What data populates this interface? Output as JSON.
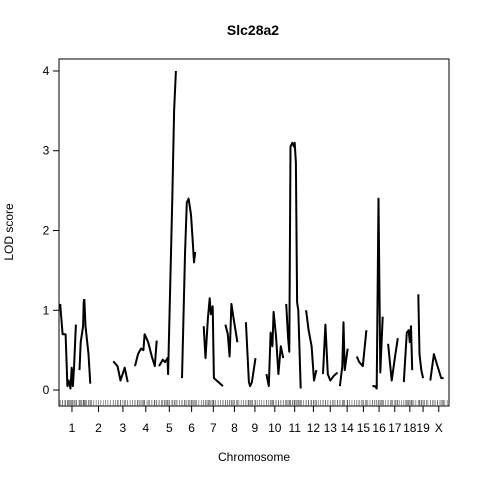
{
  "chart_data": {
    "type": "line",
    "title": "Slc28a2",
    "xlabel": "Chromosome",
    "ylabel": "LOD score",
    "ylim": [
      -0.2,
      4.15
    ],
    "xlim": [
      0,
      20.7
    ],
    "yticks": [
      0,
      1,
      2,
      3,
      4
    ],
    "chromosomes": [
      {
        "label": "1",
        "start": 0.1,
        "end": 2.05
      },
      {
        "label": "2",
        "start": 2.3,
        "end": 4.25
      },
      {
        "label": "3",
        "start": 4.5,
        "end": 6.1
      },
      {
        "label": "4",
        "start": 6.3,
        "end": 8.1
      },
      {
        "label": "5",
        "start": 8.3,
        "end": 10.0
      },
      {
        "label": "6",
        "start": 10.2,
        "end": 11.8
      },
      {
        "label": "7",
        "start": 12.0,
        "end": 13.6
      },
      {
        "label": "8",
        "start": 13.8,
        "end": 15.3
      },
      {
        "label": "9",
        "start": 15.5,
        "end": 17.0
      },
      {
        "label": "10",
        "start": 17.2,
        "end": 18.6
      },
      {
        "label": "11",
        "start": 18.8,
        "end": 20.3
      },
      {
        "label": "12",
        "start": 20.5,
        "end": 21.7
      },
      {
        "label": "13",
        "start": 21.9,
        "end": 23.1
      },
      {
        "label": "14",
        "start": 23.3,
        "end": 24.5
      },
      {
        "label": "15",
        "start": 24.7,
        "end": 25.8
      },
      {
        "label": "16",
        "start": 26.0,
        "end": 27.1
      },
      {
        "label": "17",
        "start": 27.3,
        "end": 28.4
      },
      {
        "label": "18",
        "start": 28.6,
        "end": 29.6
      },
      {
        "label": "19",
        "start": 29.8,
        "end": 30.6
      },
      {
        "label": "X",
        "start": 30.8,
        "end": 32.2
      }
    ],
    "series": [
      {
        "chromosome": "1",
        "points": [
          [
            0.1,
            1.08
          ],
          [
            0.3,
            0.7
          ],
          [
            0.55,
            0.7
          ],
          [
            0.7,
            0.05
          ],
          [
            0.8,
            0.12
          ],
          [
            0.95,
            0.02
          ],
          [
            1.05,
            0.28
          ],
          [
            1.15,
            0.05
          ],
          [
            1.25,
            0.3
          ],
          [
            1.4,
            0.82
          ]
        ]
      },
      {
        "chromosome": "1b",
        "points": [
          [
            1.7,
            0.25
          ],
          [
            1.8,
            0.6
          ],
          [
            2.0,
            0.8
          ],
          [
            2.05,
            1.1
          ],
          [
            2.1,
            1.14
          ]
        ]
      },
      {
        "chromosome": "2",
        "points": [
          [
            2.1,
            1.14
          ],
          [
            2.2,
            0.8
          ],
          [
            2.45,
            0.45
          ],
          [
            2.6,
            0.08
          ]
        ]
      },
      {
        "chromosome": "3",
        "points": [
          [
            4.5,
            0.36
          ],
          [
            4.85,
            0.3
          ],
          [
            5.1,
            0.12
          ],
          [
            5.45,
            0.28
          ],
          [
            5.7,
            0.1
          ]
        ]
      },
      {
        "chromosome": "4",
        "points": [
          [
            6.3,
            0.3
          ],
          [
            6.55,
            0.45
          ],
          [
            6.8,
            0.52
          ],
          [
            7.0,
            0.5
          ],
          [
            7.1,
            0.7
          ],
          [
            7.4,
            0.6
          ],
          [
            7.7,
            0.42
          ],
          [
            7.95,
            0.3
          ],
          [
            8.1,
            0.62
          ]
        ]
      },
      {
        "chromosome": "5",
        "points": [
          [
            8.3,
            0.3
          ],
          [
            8.6,
            0.38
          ],
          [
            8.8,
            0.35
          ],
          [
            9.0,
            0.4
          ],
          [
            9.05,
            0.2
          ],
          [
            9.4,
            2.4
          ],
          [
            9.55,
            3.5
          ],
          [
            9.7,
            4.0
          ]
        ]
      },
      {
        "chromosome": "6",
        "points": [
          [
            10.2,
            0.15
          ],
          [
            10.45,
            1.7
          ],
          [
            10.6,
            2.35
          ],
          [
            10.75,
            2.4
          ],
          [
            10.95,
            2.2
          ],
          [
            11.1,
            1.85
          ],
          [
            11.2,
            1.6
          ],
          [
            11.3,
            1.73
          ]
        ]
      },
      {
        "chromosome": "7",
        "points": [
          [
            12.0,
            0.8
          ],
          [
            12.15,
            0.4
          ],
          [
            12.35,
            0.9
          ],
          [
            12.5,
            1.15
          ],
          [
            12.6,
            0.95
          ],
          [
            12.75,
            1.05
          ],
          [
            12.85,
            0.15
          ],
          [
            13.6,
            0.05
          ]
        ]
      },
      {
        "chromosome": "8",
        "points": [
          [
            13.8,
            0.82
          ],
          [
            14.0,
            0.7
          ],
          [
            14.15,
            0.42
          ],
          [
            14.3,
            1.08
          ],
          [
            14.5,
            0.88
          ],
          [
            14.8,
            0.6
          ]
        ]
      },
      {
        "chromosome": "9",
        "points": [
          [
            15.5,
            0.85
          ],
          [
            15.75,
            0.1
          ],
          [
            15.85,
            0.05
          ],
          [
            16.0,
            0.1
          ],
          [
            16.3,
            0.4
          ]
        ]
      },
      {
        "chromosome": "10",
        "points": [
          [
            17.2,
            0.2
          ],
          [
            17.4,
            0.05
          ],
          [
            17.55,
            0.72
          ],
          [
            17.7,
            0.55
          ],
          [
            17.8,
            0.98
          ],
          [
            18.0,
            0.68
          ],
          [
            18.2,
            0.2
          ],
          [
            18.4,
            0.55
          ],
          [
            18.6,
            0.4
          ]
        ]
      },
      {
        "chromosome": "11",
        "points": [
          [
            18.85,
            1.08
          ],
          [
            19.0,
            0.65
          ],
          [
            19.1,
            0.48
          ],
          [
            19.2,
            3.05
          ],
          [
            19.35,
            3.1
          ],
          [
            19.5,
            3.05
          ],
          [
            19.55,
            3.1
          ],
          [
            19.65,
            2.85
          ],
          [
            19.75,
            1.1
          ],
          [
            19.85,
            1.0
          ],
          [
            20.05,
            0.02
          ]
        ]
      },
      {
        "chromosome": "12",
        "points": [
          [
            20.5,
            1.0
          ],
          [
            20.7,
            0.75
          ],
          [
            20.95,
            0.55
          ],
          [
            21.15,
            0.12
          ],
          [
            21.35,
            0.25
          ]
        ]
      },
      {
        "chromosome": "13",
        "points": [
          [
            21.9,
            0.2
          ],
          [
            22.1,
            0.82
          ],
          [
            22.3,
            0.2
          ],
          [
            22.5,
            0.12
          ],
          [
            22.8,
            0.18
          ],
          [
            23.1,
            0.22
          ]
        ]
      },
      {
        "chromosome": "14",
        "points": [
          [
            23.3,
            0.05
          ],
          [
            23.5,
            0.3
          ],
          [
            23.6,
            0.85
          ],
          [
            23.7,
            0.25
          ],
          [
            23.95,
            0.52
          ]
        ]
      },
      {
        "chromosome": "15",
        "points": [
          [
            24.7,
            0.42
          ],
          [
            24.9,
            0.35
          ],
          [
            25.2,
            0.3
          ],
          [
            25.5,
            0.75
          ]
        ]
      },
      {
        "chromosome": "16",
        "points": [
          [
            26.0,
            0.05
          ],
          [
            26.2,
            0.05
          ],
          [
            26.35,
            0.02
          ],
          [
            26.5,
            2.4
          ],
          [
            26.65,
            0.22
          ],
          [
            26.85,
            0.92
          ]
        ]
      },
      {
        "chromosome": "17",
        "points": [
          [
            27.3,
            0.58
          ],
          [
            27.6,
            0.12
          ],
          [
            27.9,
            0.45
          ],
          [
            28.1,
            0.65
          ]
        ]
      },
      {
        "chromosome": "18",
        "points": [
          [
            28.6,
            0.1
          ],
          [
            28.85,
            0.72
          ],
          [
            29.0,
            0.75
          ],
          [
            29.1,
            0.6
          ],
          [
            29.2,
            0.8
          ],
          [
            29.3,
            0.25
          ]
        ]
      },
      {
        "chromosome": "19",
        "points": [
          [
            29.8,
            1.2
          ],
          [
            29.9,
            0.45
          ],
          [
            30.05,
            0.25
          ],
          [
            30.2,
            0.15
          ]
        ]
      },
      {
        "chromosome": "X",
        "points": [
          [
            30.8,
            0.12
          ],
          [
            31.1,
            0.45
          ],
          [
            31.4,
            0.3
          ],
          [
            31.7,
            0.15
          ],
          [
            31.9,
            0.15
          ]
        ]
      }
    ]
  }
}
